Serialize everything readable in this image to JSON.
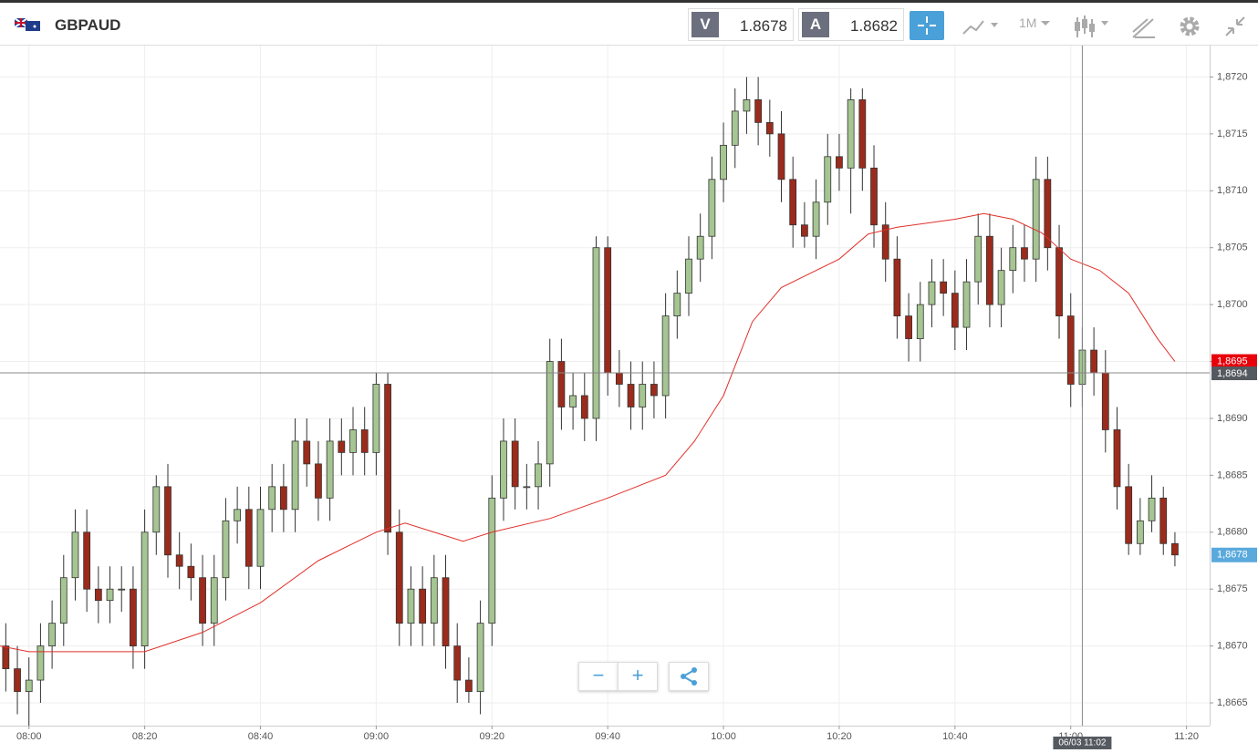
{
  "header": {
    "symbol": "GBPAUD",
    "sell_label": "V",
    "sell_price": "1.8678",
    "buy_label": "A",
    "buy_price": "1.8682",
    "timeframe": "1M"
  },
  "chart_data": {
    "type": "candlestick",
    "x": [
      "07:56",
      "07:58",
      "08:00",
      "08:02",
      "08:04",
      "08:06",
      "08:08",
      "08:10",
      "08:12",
      "08:14",
      "08:16",
      "08:18",
      "08:20",
      "08:22",
      "08:24",
      "08:26",
      "08:28",
      "08:30",
      "08:32",
      "08:34",
      "08:36",
      "08:38",
      "08:40",
      "08:42",
      "08:44",
      "08:46",
      "08:48",
      "08:50",
      "08:52",
      "08:54",
      "08:56",
      "08:58",
      "09:00",
      "09:02",
      "09:04",
      "09:06",
      "09:08",
      "09:10",
      "09:12",
      "09:14",
      "09:16",
      "09:18",
      "09:20",
      "09:22",
      "09:24",
      "09:26",
      "09:28",
      "09:30",
      "09:32",
      "09:34",
      "09:36",
      "09:38",
      "09:40",
      "09:42",
      "09:44",
      "09:46",
      "09:48",
      "09:50",
      "09:52",
      "09:54",
      "09:56",
      "09:58",
      "10:00",
      "10:02",
      "10:04",
      "10:06",
      "10:08",
      "10:10",
      "10:12",
      "10:14",
      "10:16",
      "10:18",
      "10:20",
      "10:22",
      "10:24",
      "10:26",
      "10:28",
      "10:30",
      "10:32",
      "10:34",
      "10:36",
      "10:38",
      "10:40",
      "10:42",
      "10:44",
      "10:46",
      "10:48",
      "10:50",
      "10:52",
      "10:54",
      "10:56",
      "10:58",
      "11:00",
      "11:02",
      "11:04",
      "11:06",
      "11:08",
      "11:10",
      "11:12",
      "11:14",
      "11:16",
      "11:18"
    ],
    "open": [
      1.867,
      1.8668,
      1.8666,
      1.8667,
      1.867,
      1.8672,
      1.8676,
      1.868,
      1.8675,
      1.8674,
      1.8675,
      1.8675,
      1.867,
      1.868,
      1.8684,
      1.8678,
      1.8677,
      1.8676,
      1.8672,
      1.8676,
      1.8681,
      1.8682,
      1.8677,
      1.8682,
      1.8684,
      1.8682,
      1.8688,
      1.8686,
      1.8683,
      1.8688,
      1.8687,
      1.8689,
      1.8687,
      1.8693,
      1.868,
      1.8672,
      1.8675,
      1.8672,
      1.8676,
      1.867,
      1.8667,
      1.8666,
      1.8672,
      1.8683,
      1.8688,
      1.8684,
      1.8684,
      1.8686,
      1.8695,
      1.8691,
      1.8692,
      1.869,
      1.8705,
      1.8694,
      1.8693,
      1.8691,
      1.8693,
      1.8692,
      1.8699,
      1.8701,
      1.8704,
      1.8706,
      1.8711,
      1.8714,
      1.8717,
      1.8718,
      1.8716,
      1.8715,
      1.8711,
      1.8707,
      1.8706,
      1.8709,
      1.8713,
      1.8712,
      1.8718,
      1.8712,
      1.8707,
      1.8704,
      1.8699,
      1.8697,
      1.87,
      1.8702,
      1.8701,
      1.8698,
      1.8702,
      1.8706,
      1.87,
      1.8703,
      1.8705,
      1.8704,
      1.8711,
      1.8705,
      1.8699,
      1.8693,
      1.8696,
      1.8694,
      1.8689,
      1.8684,
      1.8679,
      1.8681,
      1.8683,
      1.8679
    ],
    "high": [
      1.8672,
      1.867,
      1.8669,
      1.8672,
      1.8674,
      1.8678,
      1.8682,
      1.8682,
      1.8677,
      1.8677,
      1.8677,
      1.8677,
      1.8682,
      1.8685,
      1.8686,
      1.868,
      1.8679,
      1.8678,
      1.8678,
      1.8683,
      1.8684,
      1.8684,
      1.8684,
      1.8686,
      1.8686,
      1.869,
      1.869,
      1.8688,
      1.869,
      1.869,
      1.8691,
      1.8691,
      1.8694,
      1.8694,
      1.8682,
      1.8677,
      1.8677,
      1.8678,
      1.8678,
      1.8672,
      1.8669,
      1.8674,
      1.8685,
      1.869,
      1.869,
      1.8686,
      1.8688,
      1.8697,
      1.8697,
      1.8694,
      1.8694,
      1.8706,
      1.8706,
      1.8696,
      1.8695,
      1.8695,
      1.8695,
      1.8701,
      1.8703,
      1.8706,
      1.8708,
      1.8713,
      1.8716,
      1.8719,
      1.872,
      1.872,
      1.8718,
      1.8717,
      1.8713,
      1.8709,
      1.8711,
      1.8715,
      1.8715,
      1.8719,
      1.8719,
      1.8714,
      1.8709,
      1.8706,
      1.8701,
      1.8702,
      1.8704,
      1.8704,
      1.8703,
      1.8704,
      1.8708,
      1.8708,
      1.8705,
      1.8707,
      1.8707,
      1.8713,
      1.8713,
      1.8707,
      1.8701,
      1.8698,
      1.8698,
      1.8696,
      1.8691,
      1.8686,
      1.8683,
      1.8685,
      1.8684,
      1.868
    ],
    "low": [
      1.8666,
      1.8664,
      1.8663,
      1.8665,
      1.8668,
      1.867,
      1.8674,
      1.8673,
      1.8672,
      1.8672,
      1.8673,
      1.8668,
      1.8668,
      1.8678,
      1.8676,
      1.8675,
      1.8674,
      1.867,
      1.867,
      1.8674,
      1.8679,
      1.8675,
      1.8675,
      1.868,
      1.868,
      1.868,
      1.8684,
      1.8681,
      1.8681,
      1.8685,
      1.8685,
      1.8685,
      1.8685,
      1.8678,
      1.867,
      1.867,
      1.867,
      1.867,
      1.8668,
      1.8665,
      1.8665,
      1.8664,
      1.867,
      1.8681,
      1.8682,
      1.8682,
      1.8682,
      1.8684,
      1.8689,
      1.8689,
      1.8688,
      1.8688,
      1.8692,
      1.8691,
      1.8689,
      1.8689,
      1.869,
      1.869,
      1.8697,
      1.8699,
      1.8702,
      1.8704,
      1.8709,
      1.8712,
      1.8715,
      1.8714,
      1.8713,
      1.8709,
      1.8705,
      1.8705,
      1.8704,
      1.8707,
      1.871,
      1.8708,
      1.871,
      1.8705,
      1.8702,
      1.8697,
      1.8695,
      1.8695,
      1.8698,
      1.8699,
      1.8696,
      1.8696,
      1.87,
      1.8698,
      1.8698,
      1.8701,
      1.8702,
      1.8702,
      1.8703,
      1.8697,
      1.8691,
      1.8691,
      1.8692,
      1.8687,
      1.8682,
      1.8678,
      1.8678,
      1.868,
      1.8678,
      1.8677
    ],
    "close": [
      1.8668,
      1.8666,
      1.8667,
      1.867,
      1.8672,
      1.8676,
      1.868,
      1.8675,
      1.8674,
      1.8675,
      1.8675,
      1.867,
      1.868,
      1.8684,
      1.8678,
      1.8677,
      1.8676,
      1.8672,
      1.8676,
      1.8681,
      1.8682,
      1.8677,
      1.8682,
      1.8684,
      1.8682,
      1.8688,
      1.8686,
      1.8683,
      1.8688,
      1.8687,
      1.8689,
      1.8687,
      1.8693,
      1.868,
      1.8672,
      1.8675,
      1.8672,
      1.8676,
      1.867,
      1.8667,
      1.8666,
      1.8672,
      1.8683,
      1.8688,
      1.8684,
      1.8684,
      1.8686,
      1.8695,
      1.8691,
      1.8692,
      1.869,
      1.8705,
      1.8694,
      1.8693,
      1.8691,
      1.8693,
      1.8692,
      1.8699,
      1.8701,
      1.8704,
      1.8706,
      1.8711,
      1.8714,
      1.8717,
      1.8718,
      1.8716,
      1.8715,
      1.8711,
      1.8707,
      1.8706,
      1.8709,
      1.8713,
      1.8712,
      1.8718,
      1.8712,
      1.8707,
      1.8704,
      1.8699,
      1.8697,
      1.87,
      1.8702,
      1.8701,
      1.8698,
      1.8702,
      1.8706,
      1.87,
      1.8703,
      1.8705,
      1.8704,
      1.8711,
      1.8705,
      1.8699,
      1.8693,
      1.8696,
      1.8694,
      1.8689,
      1.8684,
      1.8679,
      1.8681,
      1.8683,
      1.8679,
      1.8678
    ],
    "up_color": "#a5c592",
    "down_color": "#9b2b1c",
    "average": {
      "color": "#e0302a",
      "x": [
        "07:55",
        "08:00",
        "08:10",
        "08:20",
        "08:30",
        "08:40",
        "08:50",
        "09:00",
        "09:05",
        "09:10",
        "09:15",
        "09:20",
        "09:30",
        "09:40",
        "09:50",
        "09:55",
        "10:00",
        "10:05",
        "10:10",
        "10:20",
        "10:25",
        "10:30",
        "10:40",
        "10:45",
        "10:50",
        "10:55",
        "11:00",
        "11:05",
        "11:10",
        "11:15",
        "11:18"
      ],
      "values": [
        1.867,
        1.86695,
        1.86695,
        1.86695,
        1.86712,
        1.86738,
        1.86775,
        1.868,
        1.86808,
        1.868,
        1.86792,
        1.868,
        1.86812,
        1.8683,
        1.8685,
        1.8688,
        1.8692,
        1.86985,
        1.87015,
        1.8704,
        1.87062,
        1.87068,
        1.87075,
        1.8708,
        1.87075,
        1.87063,
        1.8704,
        1.8703,
        1.8701,
        1.8697,
        1.8695
      ]
    },
    "xlim": [
      "07:55",
      "11:24"
    ],
    "xticks": [
      "08:00",
      "08:20",
      "08:40",
      "09:00",
      "09:20",
      "09:40",
      "10:00",
      "10:20",
      "10:40",
      "11:00",
      "11:20"
    ],
    "ylim": [
      1.8663,
      1.8723
    ],
    "yticks": [
      {
        "value": 1.8665,
        "label": "1,8665"
      },
      {
        "value": 1.867,
        "label": "1,8670"
      },
      {
        "value": 1.8675,
        "label": "1,8675"
      },
      {
        "value": 1.868,
        "label": "1,8680"
      },
      {
        "value": 1.8685,
        "label": "1,8685"
      },
      {
        "value": 1.869,
        "label": "1,8690"
      },
      {
        "value": 1.8695,
        "label": "1,8695"
      },
      {
        "value": 1.87,
        "label": "1,8700"
      },
      {
        "value": 1.8705,
        "label": "1,8705"
      },
      {
        "value": 1.871,
        "label": "1,8710"
      },
      {
        "value": 1.8715,
        "label": "1,8715"
      },
      {
        "value": 1.872,
        "label": "1,8720"
      }
    ],
    "grid": true,
    "price_labels": [
      {
        "value": 1.8695,
        "label": "1,8695",
        "color": "#e8000b"
      },
      {
        "value": 1.8678,
        "label": "1,8678",
        "color": "#5aa9dc"
      }
    ],
    "crosshair": {
      "x": "11:02",
      "x_label": "06/03 11:02",
      "y": {
        "value": 1.8694,
        "label": "1,8694"
      }
    }
  }
}
